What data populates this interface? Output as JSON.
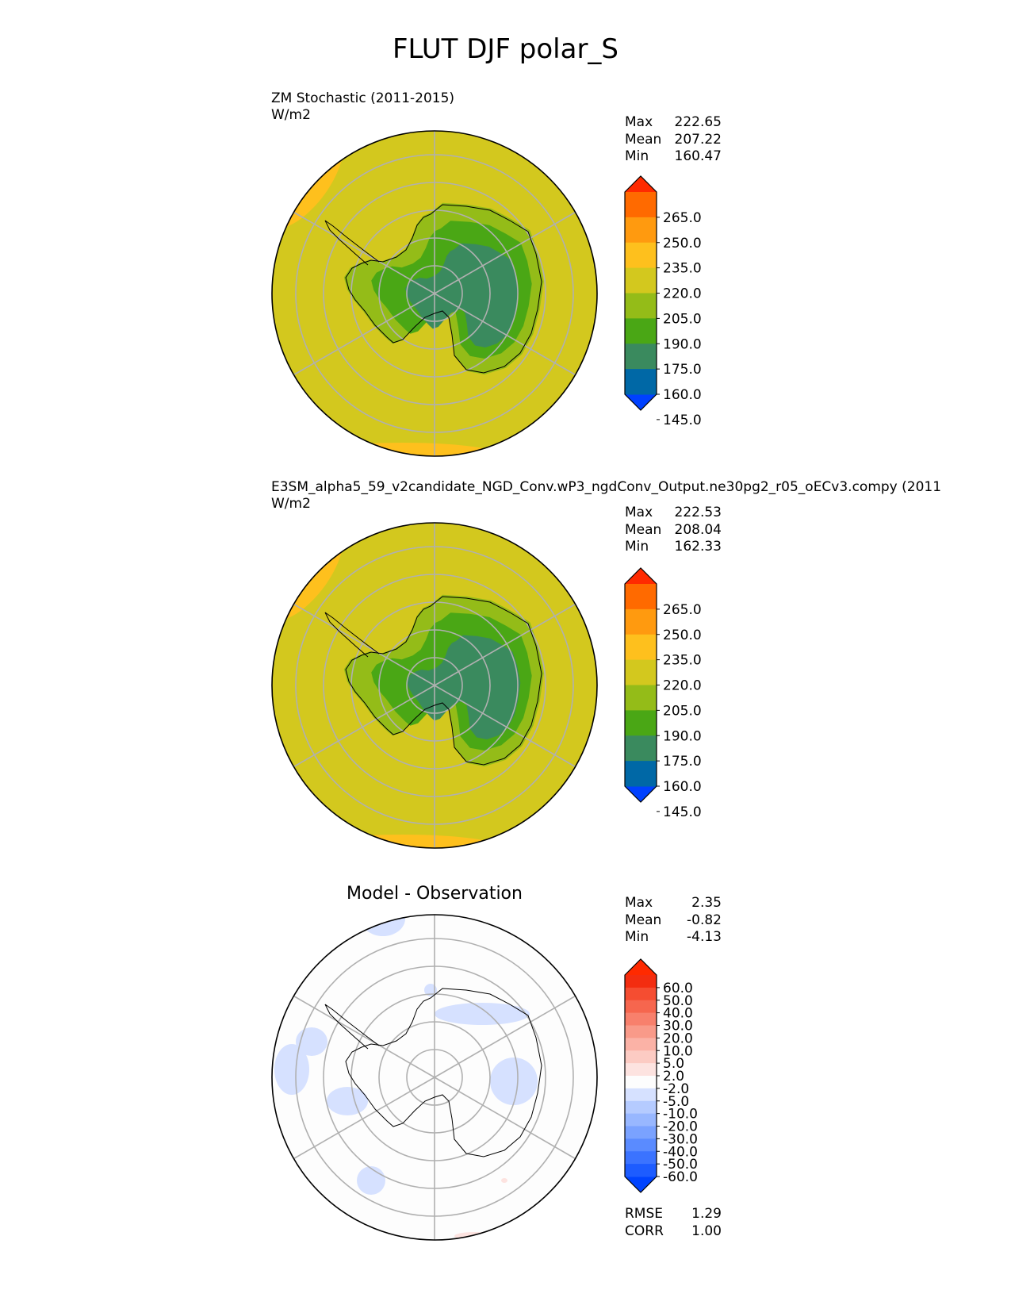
{
  "figure": {
    "title": "FLUT DJF polar_S"
  },
  "colors": {
    "main": [
      "#0041ff",
      "#0068a6",
      "#3a8a5e",
      "#4aa715",
      "#94bc18",
      "#d3c81e",
      "#fec01d",
      "#ff9a0f",
      "#ff6a00",
      "#ff2a00"
    ],
    "diff": [
      "#0044ff",
      "#1d5cff",
      "#3b73ff",
      "#5a8bff",
      "#7aa2ff",
      "#98b7ff",
      "#b5cbff",
      "#d6e1ff",
      "#fdfdfd",
      "#fde3e0",
      "#fccbc3",
      "#fbb2a6",
      "#f99a89",
      "#f8806c",
      "#f6664e",
      "#f54d31",
      "#f32d10",
      "#ff2a00"
    ]
  },
  "chart_data": [
    {
      "type": "heatmap",
      "projection": "polar_S",
      "title": "ZM Stochastic (2011-2015)",
      "units": "W/m2",
      "stats": {
        "max": "222.65",
        "mean": "207.22",
        "min": "160.47"
      },
      "stat_labels": {
        "max": "Max",
        "mean": "Mean",
        "min": "Min"
      },
      "colorbar": {
        "levels": [
          130,
          145,
          160,
          175,
          190,
          205,
          220,
          235,
          250,
          265,
          280
        ],
        "tick_labels": [
          "145.0",
          "160.0",
          "175.0",
          "190.0",
          "205.0",
          "220.0",
          "235.0",
          "250.0",
          "265.0"
        ],
        "extend": "both"
      }
    },
    {
      "type": "heatmap",
      "projection": "polar_S",
      "title": "E3SM_alpha5_59_v2candidate_NGD_Conv.wP3_ngdConv_Output.ne30pg2_r05_oECv3.compy (2011",
      "units": "W/m2",
      "stats": {
        "max": "222.53",
        "mean": "208.04",
        "min": "162.33"
      },
      "stat_labels": {
        "max": "Max",
        "mean": "Mean",
        "min": "Min"
      },
      "colorbar": {
        "levels": [
          130,
          145,
          160,
          175,
          190,
          205,
          220,
          235,
          250,
          265,
          280
        ],
        "tick_labels": [
          "145.0",
          "160.0",
          "175.0",
          "190.0",
          "205.0",
          "220.0",
          "235.0",
          "250.0",
          "265.0"
        ],
        "extend": "both"
      }
    },
    {
      "type": "heatmap",
      "projection": "polar_S",
      "title": "Model - Observation",
      "stats": {
        "max": "2.35",
        "mean": "-0.82",
        "min": "-4.13"
      },
      "stat_labels": {
        "max": "Max",
        "mean": "Mean",
        "min": "Min"
      },
      "metrics": {
        "rmse": "1.29",
        "corr": "1.00"
      },
      "metric_labels": {
        "rmse": "RMSE",
        "corr": "CORR"
      },
      "colorbar": {
        "levels": [
          -60,
          -50,
          -40,
          -30,
          -20,
          -10,
          -5,
          -2,
          2,
          5,
          10,
          20,
          30,
          40,
          50,
          60
        ],
        "tick_labels": [
          "60.0",
          "50.0",
          "40.0",
          "30.0",
          "20.0",
          "10.0",
          "5.0",
          "2.0",
          "-2.0",
          "-5.0",
          "-10.0",
          "-20.0",
          "-30.0",
          "-40.0",
          "-50.0",
          "-60.0"
        ],
        "extend": "both"
      }
    }
  ]
}
